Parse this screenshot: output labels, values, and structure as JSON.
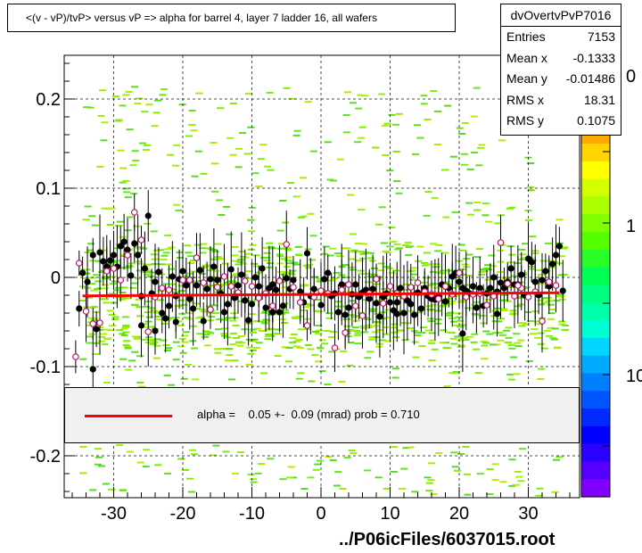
{
  "chart_data": {
    "type": "scatter",
    "title": "<(v - vP)/tvP> versus   vP => alpha for barrel 4, layer 7 ladder 16, all wafers",
    "xlabel": "",
    "ylabel": "",
    "xlim": [
      -37,
      37
    ],
    "ylim": [
      -0.245,
      0.245
    ],
    "x_ticks": [
      "-30",
      "-20",
      "-10",
      "0",
      "10",
      "20",
      "30"
    ],
    "y_ticks": [
      "0.2",
      "0.1",
      "0",
      "-0.1",
      "-0.2"
    ],
    "grid": true,
    "colorbar": {
      "tick_labels": [
        "0",
        "1",
        "10"
      ],
      "colors": [
        "#ff0000",
        "#ff2a00",
        "#ff5500",
        "#ff8000",
        "#ffaa00",
        "#ffd400",
        "#ffff00",
        "#d4ff00",
        "#aaff00",
        "#80ff00",
        "#55ff00",
        "#2aff2a",
        "#00ff55",
        "#00ff80",
        "#00ffaa",
        "#00ffd4",
        "#00d4ff",
        "#00aaff",
        "#0080ff",
        "#0055ff",
        "#002aff",
        "#0000ff",
        "#2a00ff",
        "#5500ff",
        "#8000ff"
      ]
    },
    "fit": {
      "slope_mrad": 0.05,
      "intercept_at_0": -0.019
    },
    "series_black": [
      [
        -35.0,
        -0.035
      ],
      [
        -34.5,
        0.005
      ],
      [
        -33.8,
        -0.005
      ],
      [
        -33.0,
        0.025
      ],
      [
        -32.5,
        -0.058
      ],
      [
        -32.0,
        0.028
      ],
      [
        -31.5,
        0.018
      ],
      [
        -31.0,
        0.012
      ],
      [
        -30.5,
        0.019
      ],
      [
        -30.0,
        0.025
      ],
      [
        -29.5,
        0.012
      ],
      [
        -29.0,
        0.035
      ],
      [
        -28.5,
        0.04
      ],
      [
        -28.0,
        0.031
      ],
      [
        -27.5,
        0.002
      ],
      [
        -27.0,
        0.038
      ],
      [
        -26.5,
        0.025
      ],
      [
        -26.0,
        -0.021
      ],
      [
        -25.5,
        0.01
      ],
      [
        -25.0,
        0.069
      ],
      [
        -24.5,
        -0.018
      ],
      [
        -24.0,
        -0.005
      ],
      [
        -23.5,
        0.006
      ],
      [
        -23.0,
        -0.04
      ],
      [
        -22.5,
        -0.046
      ],
      [
        -22.0,
        -0.032
      ],
      [
        -21.5,
        0.001
      ],
      [
        -21.0,
        -0.021
      ],
      [
        -20.5,
        -0.002
      ],
      [
        -20.0,
        0.007
      ],
      [
        -19.5,
        -0.009
      ],
      [
        -19.0,
        -0.024
      ],
      [
        -18.5,
        -0.035
      ],
      [
        -18.0,
        -0.009
      ],
      [
        -17.5,
        0.008
      ],
      [
        -17.0,
        -0.049
      ],
      [
        -16.5,
        -0.013
      ],
      [
        -16.0,
        -0.002
      ],
      [
        -15.5,
        0.012
      ],
      [
        -15.0,
        -0.003
      ],
      [
        -14.5,
        -0.018
      ],
      [
        -14.0,
        -0.039
      ],
      [
        -13.5,
        -0.03
      ],
      [
        -13.0,
        0.009
      ],
      [
        -12.5,
        -0.023
      ],
      [
        -12.0,
        -0.009
      ],
      [
        -11.5,
        0.003
      ],
      [
        -11.0,
        -0.026
      ],
      [
        -10.5,
        -0.048
      ],
      [
        -10.0,
        -0.03
      ],
      [
        -9.5,
        0.0
      ],
      [
        -9.0,
        -0.01
      ],
      [
        -8.5,
        0.01
      ],
      [
        -8.0,
        -0.034
      ],
      [
        -7.5,
        -0.012
      ],
      [
        -7.0,
        -0.008
      ],
      [
        -6.5,
        -0.014
      ],
      [
        -6.0,
        -0.039
      ],
      [
        -5.5,
        -0.032
      ],
      [
        -5.0,
        -0.001
      ],
      [
        -4.5,
        -0.013
      ],
      [
        -4.0,
        -0.003
      ],
      [
        -3.0,
        -0.016
      ],
      [
        -2.5,
        -0.028
      ],
      [
        -2.0,
        0.027
      ],
      [
        -1.5,
        -0.021
      ],
      [
        -1.0,
        -0.013
      ],
      [
        0.0,
        -0.031
      ],
      [
        0.5,
        -0.002
      ],
      [
        1.0,
        0.005
      ],
      [
        1.5,
        -0.021
      ],
      [
        2.0,
        -0.018
      ],
      [
        2.5,
        -0.039
      ],
      [
        3.0,
        -0.008
      ],
      [
        3.5,
        -0.042
      ],
      [
        4.0,
        -0.034
      ],
      [
        4.5,
        -0.019
      ],
      [
        5.0,
        -0.008
      ],
      [
        5.5,
        -0.022
      ],
      [
        6.0,
        -0.017
      ],
      [
        6.5,
        -0.014
      ],
      [
        7.0,
        -0.024
      ],
      [
        7.5,
        -0.013
      ],
      [
        8.0,
        -0.029
      ],
      [
        8.5,
        -0.044
      ],
      [
        9.0,
        -0.022
      ],
      [
        9.5,
        -0.018
      ],
      [
        10.0,
        -0.028
      ],
      [
        10.5,
        -0.037
      ],
      [
        11.0,
        -0.041
      ],
      [
        11.5,
        -0.012
      ],
      [
        12.0,
        -0.04
      ],
      [
        12.5,
        -0.026
      ],
      [
        13.0,
        -0.03
      ],
      [
        13.5,
        -0.042
      ],
      [
        14.0,
        -0.017
      ],
      [
        14.5,
        -0.035
      ],
      [
        15.0,
        -0.012
      ],
      [
        15.5,
        -0.021
      ],
      [
        16.0,
        -0.024
      ],
      [
        16.5,
        -0.025
      ],
      [
        17.0,
        -0.022
      ],
      [
        17.5,
        -0.008
      ],
      [
        18.0,
        -0.027
      ],
      [
        18.5,
        -0.012
      ],
      [
        19.0,
        0.001
      ],
      [
        19.5,
        0.005
      ],
      [
        20.0,
        -0.005
      ],
      [
        20.5,
        -0.012
      ],
      [
        21.0,
        -0.015
      ],
      [
        21.5,
        -0.018
      ],
      [
        22.0,
        -0.01
      ],
      [
        22.5,
        -0.034
      ],
      [
        23.0,
        -0.012
      ],
      [
        23.5,
        -0.032
      ],
      [
        24.0,
        -0.018
      ],
      [
        24.5,
        -0.012
      ],
      [
        25.0,
        0.0
      ],
      [
        25.5,
        -0.016
      ],
      [
        26.0,
        -0.006
      ],
      [
        26.5,
        -0.012
      ],
      [
        27.0,
        -0.005
      ],
      [
        27.5,
        0.01
      ],
      [
        28.0,
        -0.008
      ],
      [
        28.5,
        -0.008
      ],
      [
        29.0,
        0.003
      ],
      [
        29.5,
        -0.02
      ],
      [
        30.0,
        0.021
      ],
      [
        30.5,
        0.017
      ],
      [
        31.0,
        -0.005
      ],
      [
        31.5,
        -0.02
      ],
      [
        32.0,
        -0.003
      ],
      [
        32.5,
        0.007
      ],
      [
        33.0,
        -0.01
      ],
      [
        33.5,
        0.015
      ],
      [
        34.0,
        0.025
      ],
      [
        34.5,
        0.035
      ],
      [
        35.0,
        -0.015
      ],
      [
        -33.0,
        -0.103
      ],
      [
        -26.0,
        -0.054
      ],
      [
        -24.0,
        -0.06
      ],
      [
        20.5,
        -0.063
      ],
      [
        25.5,
        -0.041
      ],
      [
        -21.0,
        -0.05
      ],
      [
        -7.0,
        -0.039
      ],
      [
        11.0,
        -0.028
      ]
    ],
    "series_open": [
      [
        -35.5,
        -0.089
      ],
      [
        -35.0,
        0.016
      ],
      [
        -34.0,
        -0.038
      ],
      [
        -33.0,
        -0.052
      ],
      [
        -32.0,
        -0.051
      ],
      [
        -31.0,
        0.007
      ],
      [
        -30.0,
        0.01
      ],
      [
        -29.0,
        -0.003
      ],
      [
        -28.0,
        0.025
      ],
      [
        -27.0,
        0.073
      ],
      [
        -26.0,
        0.042
      ],
      [
        -25.0,
        -0.061
      ],
      [
        -24.0,
        -0.022
      ],
      [
        -23.0,
        -0.012
      ],
      [
        -22.0,
        -0.014
      ],
      [
        -20.0,
        -0.003
      ],
      [
        -18.0,
        0.022
      ],
      [
        -17.0,
        -0.006
      ],
      [
        -15.0,
        -0.011
      ],
      [
        -13.0,
        -0.01
      ],
      [
        -12.0,
        -0.017
      ],
      [
        -11.0,
        -0.004
      ],
      [
        -10.0,
        -0.01
      ],
      [
        -9.0,
        -0.023
      ],
      [
        -8.0,
        -0.018
      ],
      [
        -7.0,
        -0.032
      ],
      [
        -6.0,
        -0.004
      ],
      [
        -5.0,
        0.037
      ],
      [
        -4.0,
        -0.011
      ],
      [
        -3.0,
        -0.028
      ],
      [
        -2.0,
        -0.054
      ],
      [
        -1.0,
        -0.022
      ],
      [
        0.0,
        -0.015
      ],
      [
        1.0,
        -0.018
      ],
      [
        2.0,
        -0.079
      ],
      [
        3.0,
        -0.014
      ],
      [
        4.0,
        -0.008
      ],
      [
        5.0,
        -0.032
      ],
      [
        6.0,
        -0.043
      ],
      [
        7.0,
        -0.018
      ],
      [
        8.0,
        -0.002
      ],
      [
        9.0,
        -0.029
      ],
      [
        10.0,
        -0.01
      ],
      [
        11.0,
        -0.018
      ],
      [
        12.0,
        -0.021
      ],
      [
        13.0,
        -0.011
      ],
      [
        14.0,
        -0.006
      ],
      [
        15.0,
        -0.016
      ],
      [
        16.0,
        -0.019
      ],
      [
        17.0,
        -0.024
      ],
      [
        18.0,
        -0.01
      ],
      [
        19.0,
        -0.019
      ],
      [
        20.0,
        0.005
      ],
      [
        21.0,
        -0.022
      ],
      [
        22.0,
        -0.019
      ],
      [
        23.0,
        -0.018
      ],
      [
        24.0,
        -0.031
      ],
      [
        25.0,
        -0.021
      ],
      [
        26.0,
        0.039
      ],
      [
        27.0,
        -0.007
      ],
      [
        28.0,
        -0.021
      ],
      [
        29.0,
        -0.012
      ],
      [
        30.0,
        -0.022
      ],
      [
        31.0,
        -0.016
      ],
      [
        32.0,
        -0.049
      ],
      [
        33.0,
        -0.005
      ],
      [
        34.0,
        -0.009
      ],
      [
        -19.0,
        -0.003
      ],
      [
        -14.0,
        0.001
      ],
      [
        -16.0,
        -0.036
      ],
      [
        3.5,
        -0.062
      ],
      [
        28.5,
        -0.009
      ]
    ]
  },
  "stats": {
    "name": "dvOvertvPvP7016",
    "rows": [
      {
        "label": "Entries",
        "value": "7153"
      },
      {
        "label": "Mean x",
        "value": "-0.1333"
      },
      {
        "label": "Mean y",
        "value": "-0.01486"
      },
      {
        "label": "RMS x",
        "value": "18.31"
      },
      {
        "label": "RMS y",
        "value": "0.1075"
      }
    ]
  },
  "fit_legend": {
    "text": "alpha =    0.05 +-  0.09 (mrad) prob = 0.710"
  },
  "footer": "../P06icFiles/6037015.root"
}
